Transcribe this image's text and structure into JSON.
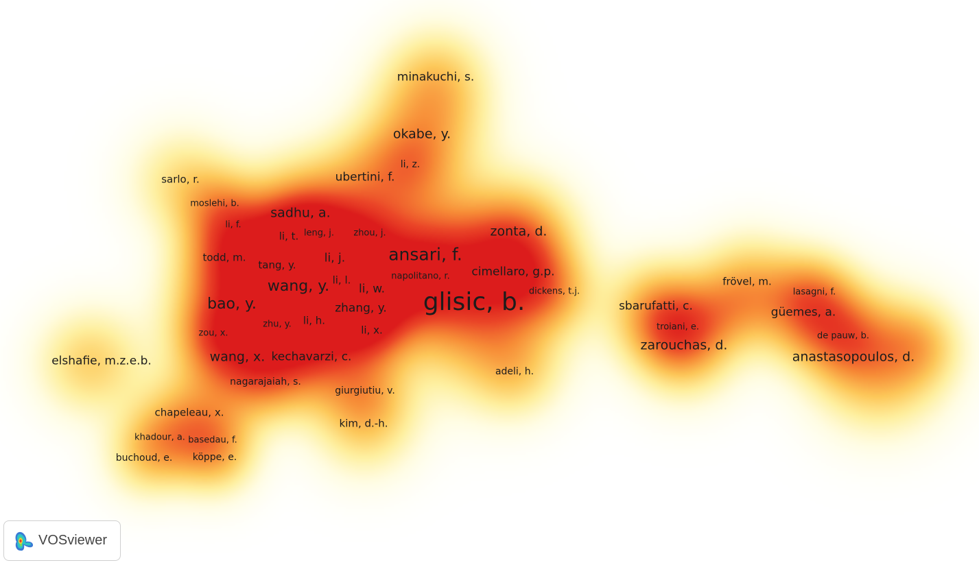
{
  "chart_data": {
    "type": "density",
    "labels": [
      "minakuchi, s.",
      "okabe, y.",
      "li, z.",
      "ubertini, f.",
      "sarlo, r.",
      "moslehi, b.",
      "li, f.",
      "sadhu, a.",
      "li, t.",
      "leng, j.",
      "zhou, j.",
      "zonta, d.",
      "ansari, f.",
      "todd, m.",
      "tang, y.",
      "li, j.",
      "cimellaro, g.p.",
      "napolitano, r.",
      "wang, y.",
      "li, l.",
      "li, w.",
      "dickens, t.j.",
      "glisic, b.",
      "bao, y.",
      "zhang, y.",
      "li, h.",
      "zhu, y.",
      "li, x.",
      "zou, x.",
      "elshafie, m.z.e.b.",
      "wang, x.",
      "kechavarzi, c.",
      "adeli, h.",
      "nagarajaiah, s.",
      "giurgiutiu, v.",
      "chapeleau, x.",
      "kim, d.-h.",
      "khadour, a.",
      "basedau, f.",
      "buchoud, e.",
      "köppe, e.",
      "sbarufatti, c.",
      "troiani, e.",
      "zarouchas, d.",
      "frövel, m.",
      "lasagni, f.",
      "güemes, a.",
      "de pauw, b.",
      "anastasopoulos, d."
    ]
  },
  "logo": {
    "text": "VOSviewer"
  }
}
